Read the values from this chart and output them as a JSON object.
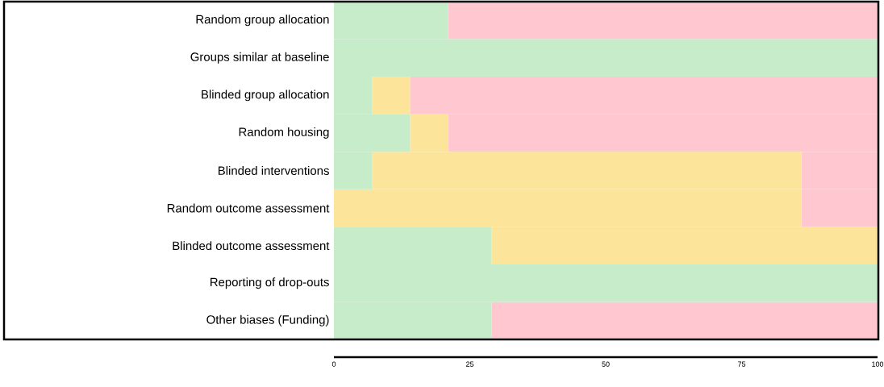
{
  "chart_data": {
    "type": "bar",
    "orientation": "horizontal",
    "stacked": true,
    "categories": [
      "Random group allocation",
      "Groups similar at baseline",
      "Blinded group allocation",
      "Random housing",
      "Blinded interventions",
      "Random outcome assessment",
      "Blinded outcome assessment",
      "Reporting of drop-outs",
      "Other biases (Funding)"
    ],
    "series": [
      {
        "color": "#c6ecc9",
        "values": [
          21,
          100,
          7,
          14,
          7,
          0,
          29,
          100,
          29
        ]
      },
      {
        "color": "#fce59a",
        "values": [
          0,
          0,
          7,
          7,
          79,
          86,
          71,
          0,
          0
        ]
      },
      {
        "color": "#ffc7cf",
        "values": [
          79,
          0,
          86,
          79,
          14,
          14,
          0,
          0,
          71
        ]
      }
    ],
    "xlim": [
      0,
      100
    ],
    "xticks": [
      0,
      25,
      50,
      75,
      100
    ]
  }
}
